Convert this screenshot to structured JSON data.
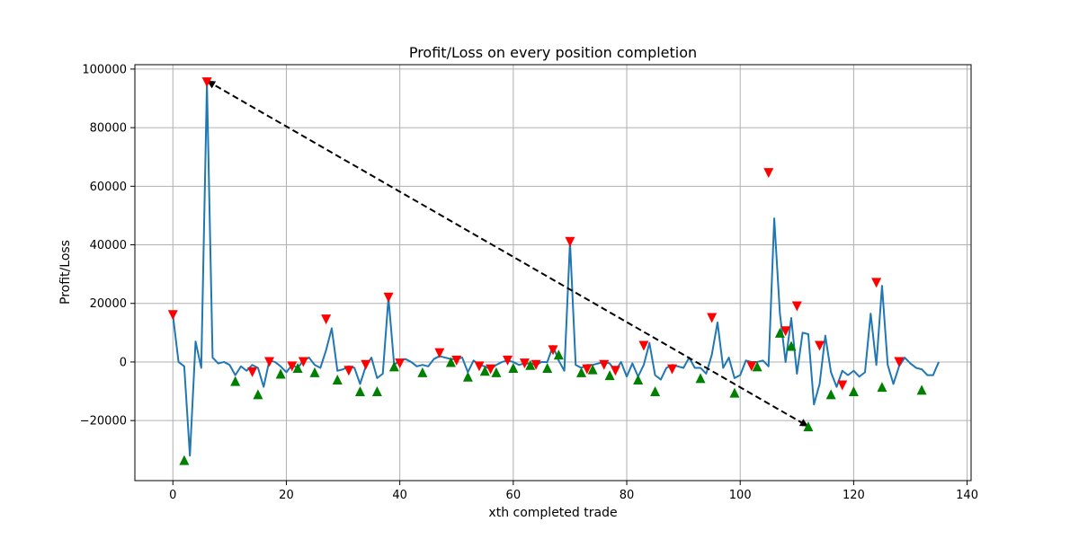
{
  "chart_data": {
    "type": "line",
    "title": "Profit/Loss on every position completion",
    "xlabel": "xth completed trade",
    "ylabel": "Profit/Loss",
    "xlim": [
      -6.7,
      140.7
    ],
    "ylim": [
      -40500,
      101500
    ],
    "x_ticks": [
      0,
      20,
      40,
      60,
      80,
      100,
      120,
      140
    ],
    "y_ticks": [
      -20000,
      0,
      20000,
      40000,
      60000,
      80000,
      100000
    ],
    "y_tick_labels": [
      "−20000",
      "0",
      "20000",
      "40000",
      "60000",
      "80000",
      "100000"
    ],
    "grid": true,
    "colors": {
      "line": "#1f77b4",
      "sell_marker": "#ff0000",
      "buy_marker": "#008000",
      "trend": "#000000"
    },
    "series": [
      {
        "values": [
          16000,
          0,
          -1500,
          -32000,
          7000,
          -2000,
          95000,
          1500,
          -500,
          0,
          -1000,
          -4500,
          -1500,
          -3000,
          -1000,
          -2000,
          -8500,
          500,
          0,
          -1500,
          -3500,
          -1000,
          -2000,
          500,
          1500,
          -1000,
          -2000,
          4000,
          11500,
          -3000,
          -2500,
          -1500,
          -2000,
          -7500,
          -1500,
          1500,
          -5500,
          -4000,
          22000,
          -1000,
          500,
          1000,
          0,
          -1500,
          -1000,
          -1500,
          1000,
          2000,
          1500,
          1000,
          1000,
          1500,
          -3500,
          500,
          -1000,
          -1500,
          -2500,
          -1000,
          0,
          500,
          0,
          -1000,
          -500,
          -500,
          -1000,
          0,
          0,
          5500,
          500,
          -3000,
          41000,
          -1000,
          -2000,
          -1000,
          -1000,
          -500,
          0,
          -500,
          -3000,
          0,
          -5000,
          -500,
          -5000,
          -1000,
          6500,
          -4500,
          -6000,
          -2000,
          -1000,
          -1500,
          -2000,
          1500,
          -2000,
          -2000,
          -4000,
          2500,
          13500,
          -2000,
          1500,
          -5500,
          -4500,
          500,
          0,
          0,
          500,
          -1500,
          49000,
          16500,
          0,
          15000,
          -4000,
          10000,
          9500,
          -14500,
          -7500,
          9000,
          -3500,
          -8500,
          -3000,
          -4500,
          -3000,
          -5000,
          -3500,
          16500,
          -1000,
          26000,
          -1000,
          -7500,
          -1500,
          1500,
          -500,
          -2000,
          -2500,
          -4500,
          -4500,
          0
        ]
      }
    ],
    "sell_markers": [
      [
        0,
        16000
      ],
      [
        6,
        95500
      ],
      [
        14,
        -3500
      ],
      [
        17,
        0
      ],
      [
        21,
        -1500
      ],
      [
        23,
        0
      ],
      [
        27,
        14500
      ],
      [
        31,
        -3000
      ],
      [
        34,
        -1000
      ],
      [
        38,
        22000
      ],
      [
        40,
        -500
      ],
      [
        47,
        3000
      ],
      [
        50,
        500
      ],
      [
        54,
        -1500
      ],
      [
        56,
        -2500
      ],
      [
        59,
        500
      ],
      [
        62,
        -500
      ],
      [
        64,
        -1000
      ],
      [
        67,
        4000
      ],
      [
        70,
        41000
      ],
      [
        73,
        -2500
      ],
      [
        76,
        -1000
      ],
      [
        78,
        -3000
      ],
      [
        83,
        5500
      ],
      [
        88,
        -2500
      ],
      [
        95,
        15000
      ],
      [
        102,
        -1500
      ],
      [
        105,
        64500
      ],
      [
        108,
        10500
      ],
      [
        110,
        19000
      ],
      [
        114,
        5500
      ],
      [
        118,
        -8000
      ],
      [
        124,
        27000
      ],
      [
        128,
        0
      ]
    ],
    "buy_markers": [
      [
        2,
        -33500
      ],
      [
        11,
        -6500
      ],
      [
        15,
        -11000
      ],
      [
        19,
        -4000
      ],
      [
        22,
        -2000
      ],
      [
        25,
        -3500
      ],
      [
        29,
        -6000
      ],
      [
        33,
        -10000
      ],
      [
        36,
        -10000
      ],
      [
        39,
        -1500
      ],
      [
        44,
        -3500
      ],
      [
        49,
        0
      ],
      [
        52,
        -5000
      ],
      [
        55,
        -3000
      ],
      [
        57,
        -3500
      ],
      [
        60,
        -2000
      ],
      [
        63,
        -1000
      ],
      [
        66,
        -2000
      ],
      [
        68,
        2500
      ],
      [
        72,
        -3500
      ],
      [
        74,
        -2500
      ],
      [
        77,
        -4500
      ],
      [
        82,
        -6000
      ],
      [
        85,
        -10000
      ],
      [
        93,
        -5500
      ],
      [
        99,
        -10500
      ],
      [
        103,
        -1500
      ],
      [
        107,
        10000
      ],
      [
        109,
        5500
      ],
      [
        112,
        -22000
      ],
      [
        116,
        -11000
      ],
      [
        120,
        -10000
      ],
      [
        125,
        -8500
      ],
      [
        132,
        -9500
      ]
    ],
    "trend_arrow": {
      "from": [
        6,
        96000
      ],
      "to": [
        112,
        -22000
      ]
    }
  }
}
